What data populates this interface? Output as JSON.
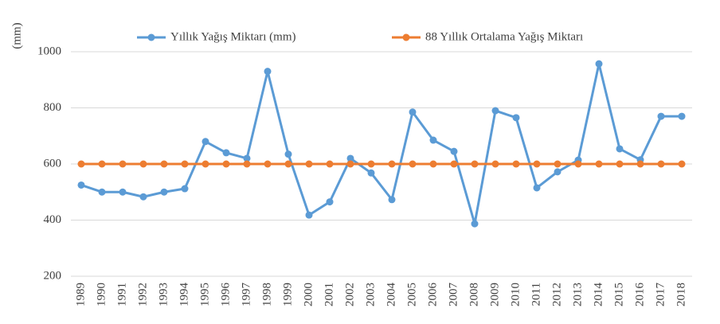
{
  "chart_data": {
    "type": "line",
    "y_label": "(mm)",
    "categories": [
      "1989",
      "1990",
      "1991",
      "1992",
      "1993",
      "1994",
      "1995",
      "1996",
      "1997",
      "1998",
      "1999",
      "2000",
      "2001",
      "2002",
      "2003",
      "2004",
      "2005",
      "2006",
      "2007",
      "2008",
      "2009",
      "2010",
      "2011",
      "2012",
      "2013",
      "2014",
      "2015",
      "2016",
      "2017",
      "2018"
    ],
    "series": [
      {
        "name": "Yıllık Yağış Miktarı (mm)",
        "color": "#5b9bd5",
        "values": [
          525,
          500,
          500,
          483,
          500,
          512,
          680,
          640,
          620,
          930,
          635,
          418,
          465,
          620,
          568,
          473,
          785,
          685,
          645,
          387,
          790,
          765,
          515,
          572,
          614,
          957,
          654,
          615,
          770,
          770
        ]
      },
      {
        "name": "88 Yıllık Ortalama Yağış Miktarı",
        "color": "#ed7d31",
        "values": [
          600,
          600,
          600,
          600,
          600,
          600,
          600,
          600,
          600,
          600,
          600,
          600,
          600,
          600,
          600,
          600,
          600,
          600,
          600,
          600,
          600,
          600,
          600,
          600,
          600,
          600,
          600,
          600,
          600,
          600
        ]
      }
    ],
    "ylim": [
      200,
      1000
    ],
    "yticks": [
      200,
      400,
      600,
      800,
      1000
    ],
    "grid": true,
    "legend": "top"
  }
}
